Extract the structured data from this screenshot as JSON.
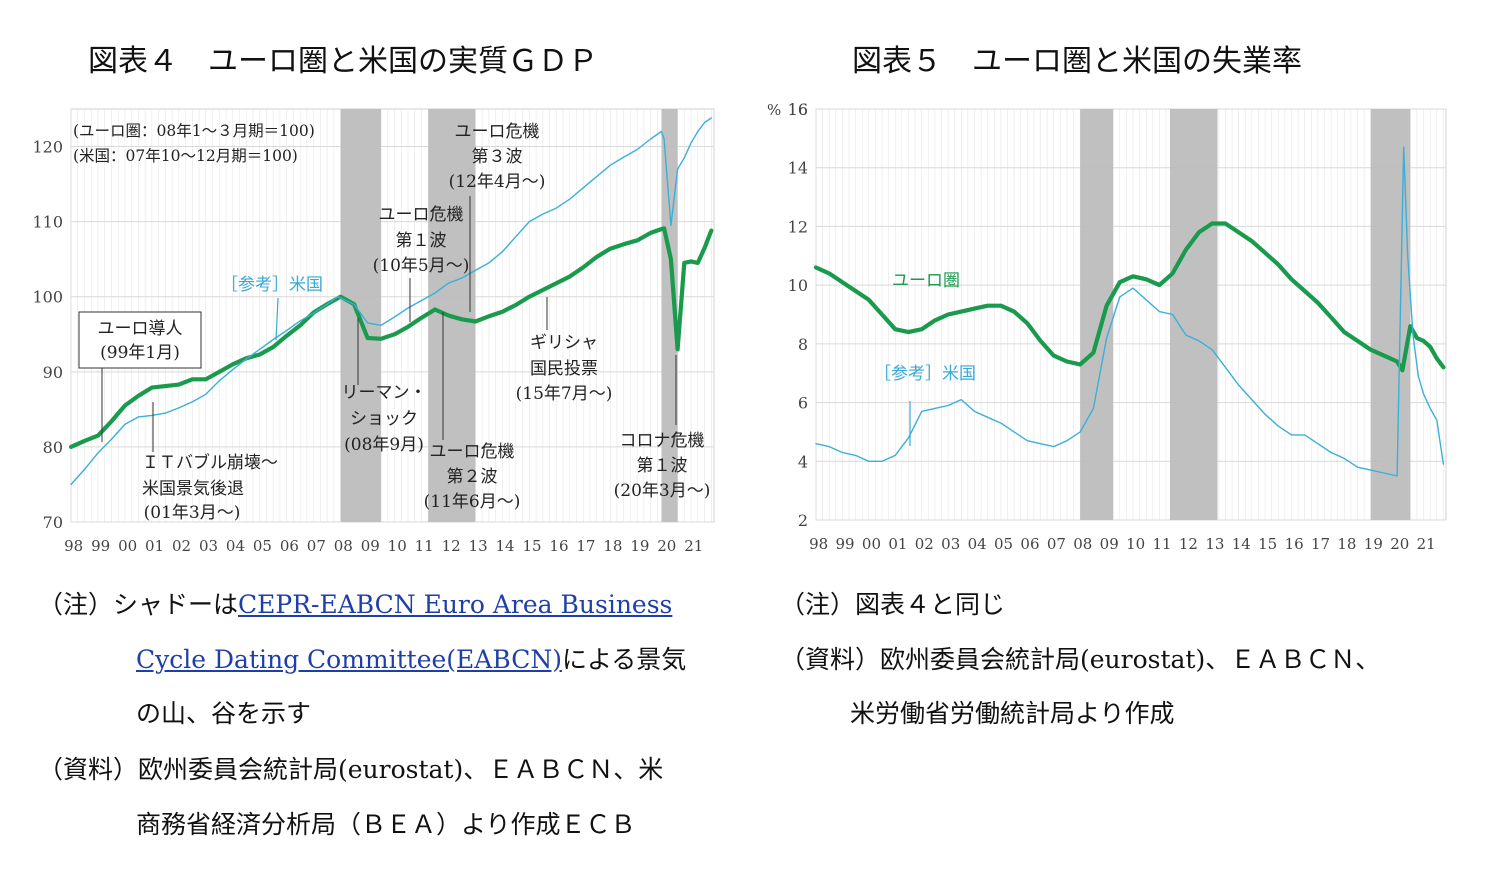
{
  "titles": {
    "fig4": "図表４　ユーロ圏と米国の実質ＧＤＰ",
    "fig5": "図表５　ユーロ圏と米国の失業率"
  },
  "colors": {
    "euro": "#1a9a4c",
    "us": "#3ab0d8",
    "shade": "#bdbdbd",
    "grid": "#d9d9d9"
  },
  "chart_data": [
    {
      "type": "line",
      "title": "図表４　ユーロ圏と米国の実質ＧＤＰ",
      "ylim": [
        70,
        125
      ],
      "xlim": [
        1998.0,
        2021.85
      ],
      "yticks": [
        70,
        80,
        90,
        100,
        110,
        120
      ],
      "xtick_labels": [
        "98",
        "99",
        "00",
        "01",
        "02",
        "03",
        "04",
        "05",
        "06",
        "07",
        "08",
        "09",
        "10",
        "11",
        "12",
        "13",
        "14",
        "15",
        "16",
        "17",
        "18",
        "19",
        "20",
        "21"
      ],
      "base_note": [
        "(ユーロ圏：08年1～３月期＝100)",
        "(米国：07年10～12月期＝100)"
      ],
      "shading": [
        [
          2008.0,
          2009.5
        ],
        [
          2011.25,
          2013.0
        ],
        [
          2019.9,
          2020.5
        ]
      ],
      "series": [
        {
          "name": "ユーロ圏",
          "x": [
            1998.0,
            1998.5,
            1999.0,
            1999.5,
            2000.0,
            2000.5,
            2001.0,
            2001.5,
            2002.0,
            2002.5,
            2003.0,
            2003.5,
            2004.0,
            2004.5,
            2005.0,
            2005.5,
            2006.0,
            2006.5,
            2007.0,
            2007.5,
            2008.0,
            2008.5,
            2009.0,
            2009.5,
            2010.0,
            2010.5,
            2011.0,
            2011.5,
            2012.0,
            2012.5,
            2013.0,
            2013.5,
            2014.0,
            2014.5,
            2015.0,
            2015.5,
            2016.0,
            2016.5,
            2017.0,
            2017.5,
            2018.0,
            2018.5,
            2019.0,
            2019.5,
            2019.9,
            2020.0,
            2020.25,
            2020.5,
            2020.75,
            2021.0,
            2021.25,
            2021.5,
            2021.75
          ],
          "values": [
            80.0,
            80.8,
            81.5,
            83.4,
            85.5,
            86.8,
            87.9,
            88.1,
            88.3,
            89.0,
            89.0,
            90.0,
            91.0,
            91.8,
            92.3,
            93.3,
            94.8,
            96.2,
            97.9,
            99.0,
            100.0,
            99.0,
            94.5,
            94.4,
            95.0,
            96.0,
            97.2,
            98.3,
            97.5,
            97.0,
            96.7,
            97.4,
            98.0,
            98.9,
            100.0,
            100.9,
            101.8,
            102.7,
            103.9,
            105.3,
            106.4,
            107.0,
            107.5,
            108.5,
            109.0,
            109.1,
            105.0,
            93.0,
            104.5,
            104.7,
            104.5,
            106.5,
            108.8
          ]
        },
        {
          "name": "米国",
          "x": [
            1998.0,
            1998.5,
            1999.0,
            1999.5,
            2000.0,
            2000.5,
            2001.0,
            2001.5,
            2002.0,
            2002.5,
            2003.0,
            2003.5,
            2004.0,
            2004.5,
            2005.0,
            2005.5,
            2006.0,
            2006.5,
            2007.0,
            2007.5,
            2007.9,
            2008.5,
            2009.0,
            2009.5,
            2010.0,
            2010.5,
            2011.0,
            2011.5,
            2012.0,
            2012.5,
            2013.0,
            2013.5,
            2014.0,
            2014.5,
            2015.0,
            2015.5,
            2016.0,
            2016.5,
            2017.0,
            2017.5,
            2018.0,
            2018.5,
            2019.0,
            2019.5,
            2019.9,
            2020.0,
            2020.25,
            2020.5,
            2020.75,
            2021.0,
            2021.25,
            2021.5,
            2021.75
          ],
          "values": [
            75.0,
            77.0,
            79.2,
            81.0,
            83.0,
            84.0,
            84.2,
            84.5,
            85.2,
            86.0,
            87.0,
            88.8,
            90.3,
            91.7,
            93.0,
            94.3,
            95.5,
            96.8,
            97.8,
            99.0,
            100.0,
            99.0,
            96.5,
            96.2,
            97.3,
            98.5,
            99.5,
            100.5,
            101.8,
            102.5,
            103.5,
            104.5,
            106.0,
            108.0,
            110.0,
            111.0,
            111.8,
            113.0,
            114.5,
            116.0,
            117.5,
            118.6,
            119.6,
            121.0,
            122.0,
            121.0,
            109.5,
            117.0,
            118.5,
            120.5,
            122.0,
            123.2,
            123.8
          ]
        }
      ],
      "labels": {
        "us_ref": "［参考］米国",
        "euro_intro": [
          "ユーロ導人",
          "(99年1月)"
        ],
        "it_bubble": [
          "ＩＴバブル崩壊～",
          "米国景気後退",
          "(01年3月～)"
        ],
        "lehman": [
          "リーマン・",
          "ショック",
          "(08年9月)"
        ],
        "euro_crisis1": [
          "ユーロ危機",
          "第１波",
          "(10年5月～)"
        ],
        "euro_crisis2": [
          "ユーロ危機",
          "第２波",
          "(11年6月～)"
        ],
        "euro_crisis3": [
          "ユーロ危機",
          "第３波",
          "(12年4月～)"
        ],
        "greece": [
          "ギリシャ",
          "国民投票",
          "(15年7月～)"
        ],
        "corona": [
          "コロナ危機",
          "第１波",
          "(20年3月～)"
        ]
      }
    },
    {
      "type": "line",
      "title": "図表５　ユーロ圏と米国の失業率",
      "ylabel": "%",
      "ylim": [
        2,
        16
      ],
      "xlim": [
        1998.0,
        2021.85
      ],
      "yticks": [
        2,
        4,
        6,
        8,
        10,
        12,
        14,
        16
      ],
      "xtick_labels": [
        "98",
        "99",
        "00",
        "01",
        "02",
        "03",
        "04",
        "05",
        "06",
        "07",
        "08",
        "09",
        "10",
        "11",
        "12",
        "13",
        "14",
        "15",
        "16",
        "17",
        "18",
        "19",
        "20",
        "21"
      ],
      "shading": [
        [
          2008.0,
          2009.25
        ],
        [
          2011.4,
          2013.2
        ],
        [
          2019.0,
          2020.5
        ]
      ],
      "series": [
        {
          "name": "ユーロ圏",
          "x": [
            1998.0,
            1998.5,
            1999.0,
            1999.5,
            2000.0,
            2000.5,
            2001.0,
            2001.5,
            2002.0,
            2002.5,
            2003.0,
            2003.5,
            2004.0,
            2004.5,
            2005.0,
            2005.5,
            2006.0,
            2006.5,
            2007.0,
            2007.5,
            2008.0,
            2008.5,
            2009.0,
            2009.5,
            2010.0,
            2010.5,
            2011.0,
            2011.5,
            2012.0,
            2012.5,
            2013.0,
            2013.5,
            2014.0,
            2014.5,
            2015.0,
            2015.5,
            2016.0,
            2016.5,
            2017.0,
            2017.5,
            2018.0,
            2018.5,
            2019.0,
            2019.5,
            2020.0,
            2020.2,
            2020.5,
            2020.75,
            2021.0,
            2021.25,
            2021.5,
            2021.75
          ],
          "values": [
            10.6,
            10.4,
            10.1,
            9.8,
            9.5,
            9.0,
            8.5,
            8.4,
            8.5,
            8.8,
            9.0,
            9.1,
            9.2,
            9.3,
            9.3,
            9.1,
            8.7,
            8.1,
            7.6,
            7.4,
            7.3,
            7.7,
            9.3,
            10.1,
            10.3,
            10.2,
            10.0,
            10.4,
            11.2,
            11.8,
            12.1,
            12.1,
            11.8,
            11.5,
            11.1,
            10.7,
            10.2,
            9.8,
            9.4,
            8.9,
            8.4,
            8.1,
            7.8,
            7.6,
            7.4,
            7.1,
            8.6,
            8.2,
            8.1,
            7.9,
            7.5,
            7.2
          ]
        },
        {
          "name": "米国",
          "x": [
            1998.0,
            1998.5,
            1999.0,
            1999.5,
            2000.0,
            2000.5,
            2001.0,
            2001.5,
            2002.0,
            2002.5,
            2003.0,
            2003.5,
            2004.0,
            2004.5,
            2005.0,
            2005.5,
            2006.0,
            2006.5,
            2007.0,
            2007.5,
            2008.0,
            2008.5,
            2009.0,
            2009.5,
            2010.0,
            2010.5,
            2011.0,
            2011.5,
            2012.0,
            2012.5,
            2013.0,
            2013.5,
            2014.0,
            2014.5,
            2015.0,
            2015.5,
            2016.0,
            2016.5,
            2017.0,
            2017.5,
            2018.0,
            2018.5,
            2019.0,
            2019.5,
            2020.0,
            2020.25,
            2020.4,
            2020.6,
            2020.8,
            2021.0,
            2021.25,
            2021.5,
            2021.75
          ],
          "values": [
            4.6,
            4.5,
            4.3,
            4.2,
            4.0,
            4.0,
            4.2,
            4.8,
            5.7,
            5.8,
            5.9,
            6.1,
            5.7,
            5.5,
            5.3,
            5.0,
            4.7,
            4.6,
            4.5,
            4.7,
            5.0,
            5.8,
            8.2,
            9.6,
            9.9,
            9.5,
            9.1,
            9.0,
            8.3,
            8.1,
            7.8,
            7.2,
            6.6,
            6.1,
            5.6,
            5.2,
            4.9,
            4.9,
            4.6,
            4.3,
            4.1,
            3.8,
            3.7,
            3.6,
            3.5,
            14.7,
            11.0,
            8.3,
            6.9,
            6.3,
            5.8,
            5.4,
            3.9
          ]
        }
      ],
      "labels": {
        "euro": "ユーロ圏",
        "us_ref": "［参考］米国"
      }
    }
  ],
  "notes": {
    "left": {
      "note_prefix": "（注）シャドーは",
      "link1": "CEPR-EABCN Euro Area Business",
      "link2": "Cycle Dating Committee(EABCN)",
      "line2_rest": "による景気",
      "line3": "の山、谷を示す",
      "source1": "（資料）欧州委員会統計局(eurostat)、ＥＡＢＣＮ、米",
      "source2": "商務省経済分析局（ＢＥＡ）より作成ＥＣＢ"
    },
    "right": {
      "note": "（注）図表４と同じ",
      "source1": "（資料）欧州委員会統計局(eurostat)、ＥＡＢＣＮ、",
      "source2": "米労働省労働統計局より作成"
    }
  }
}
